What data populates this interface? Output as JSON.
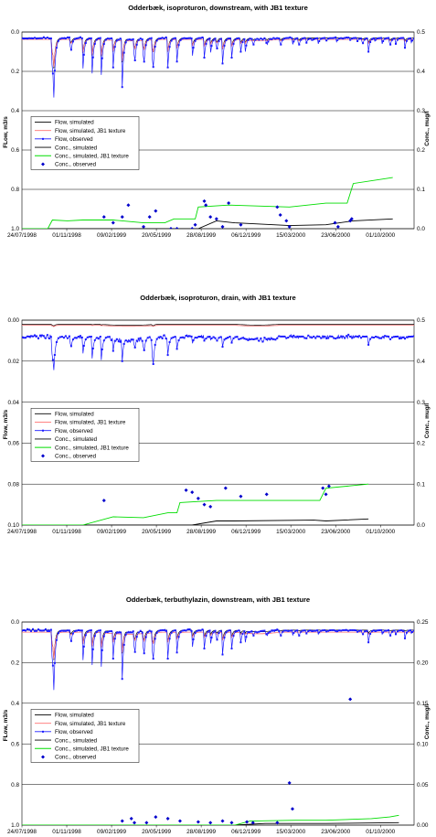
{
  "chart_data": [
    {
      "type": "line",
      "title": "Odderbæk, isoproturon, downstream, with JB1 texture",
      "ylabel_left": "FLow, m3/s",
      "ylabel_right": "Conc., mug/l",
      "x_tick_labels": [
        "24/07/1998",
        "01/11/1998",
        "09/02/1999",
        "20/05/1999",
        "28/08/1999",
        "06/12/1999",
        "15/03/2000",
        "23/06/2000",
        "01/10/2000"
      ],
      "y_left": {
        "lim": [
          0,
          1.0
        ],
        "inverted": true,
        "ticks": [
          "0.0",
          "0.2",
          "0.4",
          "0.6",
          "0.8",
          "1.0"
        ]
      },
      "y_right": {
        "lim": [
          0,
          0.5
        ],
        "ticks": [
          "0.5",
          "0.4",
          "0.3",
          "0.2",
          "0.1",
          "0.0"
        ]
      },
      "grid": "horizontal",
      "legend": [
        "Flow, simulated",
        "Flow, simulated, JB1 texture",
        "Flow, observed",
        "Conc., simulated",
        "Conc., simulated, JB1 texture",
        "Conc., observed"
      ],
      "legend_position": "middle-left",
      "flow_base": 0.03,
      "flow_dips": [
        [
          100,
          0.3
        ],
        [
          104,
          0.4
        ],
        [
          160,
          0.12
        ],
        [
          200,
          0.22
        ],
        [
          230,
          0.25
        ],
        [
          260,
          0.26
        ],
        [
          300,
          0.18
        ],
        [
          330,
          0.28
        ],
        [
          370,
          0.2
        ],
        [
          400,
          0.21
        ],
        [
          430,
          0.25
        ],
        [
          480,
          0.18
        ],
        [
          510,
          0.15
        ],
        [
          560,
          0.14
        ],
        [
          600,
          0.13
        ],
        [
          620,
          0.12
        ],
        [
          640,
          0.11
        ],
        [
          660,
          0.16
        ],
        [
          690,
          0.13
        ],
        [
          720,
          0.1
        ],
        [
          735,
          0.1
        ],
        [
          760,
          0.08
        ],
        [
          805,
          0.08
        ],
        [
          850,
          0.08
        ],
        [
          890,
          0.07
        ],
        [
          910,
          0.08
        ],
        [
          935,
          0.06
        ],
        [
          955,
          0.05
        ],
        [
          975,
          0.06
        ],
        [
          1000,
          0.05
        ],
        [
          1035,
          0.05
        ],
        [
          1080,
          0.04
        ],
        [
          1103,
          0.05
        ],
        [
          1120,
          0.07
        ],
        [
          1140,
          0.1
        ],
        [
          1160,
          0.05
        ],
        [
          1185,
          0.06
        ],
        [
          1210,
          0.08
        ],
        [
          1230,
          0.06
        ],
        [
          1260,
          0.08
        ],
        [
          1280,
          0.06
        ]
      ],
      "conc_jb1_steps": [
        [
          0,
          0.0
        ],
        [
          85,
          0.0
        ],
        [
          100,
          0.022
        ],
        [
          150,
          0.02
        ],
        [
          200,
          0.022
        ],
        [
          300,
          0.022
        ],
        [
          400,
          0.015
        ],
        [
          470,
          0.015
        ],
        [
          500,
          0.025
        ],
        [
          570,
          0.025
        ],
        [
          580,
          0.055
        ],
        [
          680,
          0.06
        ],
        [
          880,
          0.055
        ],
        [
          1000,
          0.065
        ],
        [
          1070,
          0.065
        ],
        [
          1090,
          0.115
        ],
        [
          1220,
          0.13
        ]
      ],
      "conc_sim_steps": [
        [
          0,
          0.0
        ],
        [
          580,
          0.0
        ],
        [
          640,
          0.02
        ],
        [
          700,
          0.015
        ],
        [
          880,
          0.008
        ],
        [
          1000,
          0.01
        ],
        [
          1090,
          0.02
        ],
        [
          1220,
          0.025
        ]
      ],
      "conc_obs": [
        [
          270,
          0.03
        ],
        [
          300,
          0.015
        ],
        [
          330,
          0.03
        ],
        [
          350,
          0.06
        ],
        [
          400,
          0.005
        ],
        [
          420,
          0.03
        ],
        [
          440,
          0.045
        ],
        [
          490,
          0.0
        ],
        [
          510,
          0.0
        ],
        [
          560,
          0.0
        ],
        [
          570,
          0.01
        ],
        [
          600,
          0.07
        ],
        [
          605,
          0.06
        ],
        [
          620,
          0.03
        ],
        [
          640,
          0.025
        ],
        [
          660,
          0.005
        ],
        [
          680,
          0.065
        ],
        [
          720,
          0.01
        ],
        [
          840,
          0.055
        ],
        [
          850,
          0.035
        ],
        [
          870,
          0.02
        ],
        [
          880,
          0.005
        ],
        [
          1030,
          0.015
        ],
        [
          1040,
          0.005
        ],
        [
          1080,
          0.02
        ],
        [
          1085,
          0.025
        ]
      ]
    },
    {
      "type": "line",
      "title": "Odderbæk, isoproturon, drain, with JB1 texture",
      "ylabel_left": "Flow, m3/s",
      "ylabel_right": "Conc., mug/l",
      "x_tick_labels": [
        "24/07/1998",
        "01/11/1998",
        "09/02/1999",
        "20/05/1999",
        "28/08/1999",
        "06/12/1999",
        "15/03/2000",
        "23/06/2000",
        "01/10/2000"
      ],
      "y_left": {
        "lim": [
          0,
          0.1
        ],
        "inverted": true,
        "ticks": [
          "0.00",
          "0.02",
          "0.04",
          "0.06",
          "0.08",
          "0.10"
        ]
      },
      "y_right": {
        "lim": [
          0,
          0.5
        ],
        "ticks": [
          "0.5",
          "0.4",
          "0.3",
          "0.2",
          "0.1",
          "0.0"
        ]
      },
      "grid": "horizontal",
      "legend": [
        "Flow, simulated",
        "Flow, simulated, JB1 texture",
        "Flow, observed",
        "Conc., simulated",
        "Conc., simulated, JB1 texture",
        "Conc., observed"
      ],
      "legend_position": "middle-left",
      "flow_base": 0.002,
      "flow_obs_base": 0.008,
      "flow_dips": [
        [
          100,
          0.025
        ],
        [
          104,
          0.028
        ],
        [
          160,
          0.015
        ],
        [
          200,
          0.018
        ],
        [
          230,
          0.021
        ],
        [
          260,
          0.022
        ],
        [
          300,
          0.015
        ],
        [
          330,
          0.02
        ],
        [
          370,
          0.016
        ],
        [
          400,
          0.018
        ],
        [
          430,
          0.028
        ],
        [
          480,
          0.017
        ],
        [
          510,
          0.014
        ],
        [
          560,
          0.012
        ],
        [
          600,
          0.01
        ],
        [
          620,
          0.01
        ],
        [
          640,
          0.011
        ],
        [
          660,
          0.013
        ],
        [
          690,
          0.011
        ],
        [
          720,
          0.009
        ],
        [
          735,
          0.009
        ],
        [
          760,
          0.008
        ],
        [
          805,
          0.008
        ],
        [
          850,
          0.008
        ],
        [
          890,
          0.007
        ],
        [
          910,
          0.008
        ],
        [
          935,
          0.006
        ],
        [
          955,
          0.005
        ],
        [
          975,
          0.006
        ],
        [
          1000,
          0.005
        ],
        [
          1035,
          0.005
        ],
        [
          1080,
          0.005
        ],
        [
          1103,
          0.006
        ],
        [
          1120,
          0.008
        ],
        [
          1140,
          0.012
        ],
        [
          1160,
          0.006
        ],
        [
          1185,
          0.006
        ],
        [
          1210,
          0.01
        ],
        [
          1230,
          0.006
        ],
        [
          1260,
          0.009
        ],
        [
          1280,
          0.006
        ]
      ],
      "conc_jb1_steps": [
        [
          0,
          0.0
        ],
        [
          200,
          0.0
        ],
        [
          300,
          0.02
        ],
        [
          400,
          0.018
        ],
        [
          480,
          0.03
        ],
        [
          510,
          0.03
        ],
        [
          520,
          0.055
        ],
        [
          640,
          0.06
        ],
        [
          880,
          0.06
        ],
        [
          960,
          0.06
        ],
        [
          980,
          0.06
        ],
        [
          1000,
          0.09
        ],
        [
          1140,
          0.1
        ]
      ],
      "conc_sim_steps": [
        [
          0,
          0.0
        ],
        [
          560,
          0.0
        ],
        [
          640,
          0.01
        ],
        [
          700,
          0.01
        ],
        [
          960,
          0.012
        ],
        [
          1000,
          0.01
        ],
        [
          1140,
          0.015
        ]
      ],
      "conc_obs": [
        [
          270,
          0.06
        ],
        [
          540,
          0.085
        ],
        [
          560,
          0.08
        ],
        [
          580,
          0.065
        ],
        [
          600,
          0.05
        ],
        [
          620,
          0.045
        ],
        [
          670,
          0.09
        ],
        [
          720,
          0.07
        ],
        [
          805,
          0.075
        ],
        [
          990,
          0.09
        ],
        [
          1000,
          0.075
        ],
        [
          1010,
          0.095
        ]
      ]
    },
    {
      "type": "line",
      "title": "Odderbæk, terbuthylazin, downstream, with JB1 texture",
      "ylabel_left": "FLow, m3/s",
      "ylabel_right": "Conc., mug/l",
      "x_tick_labels": [
        "24/07/1998",
        "01/11/1998",
        "09/02/1999",
        "20/05/1999",
        "28/08/1999",
        "06/12/1999",
        "15/03/2000",
        "23/06/2000",
        "01/10/2000"
      ],
      "y_left": {
        "lim": [
          0,
          1.0
        ],
        "inverted": true,
        "ticks": [
          "0.0",
          "0.2",
          "0.4",
          "0.6",
          "0.8",
          "1.0"
        ]
      },
      "y_right": {
        "lim": [
          0,
          0.25
        ],
        "ticks": [
          "0.25",
          "0.20",
          "0.15",
          "0.10",
          "0.05",
          "0.00"
        ]
      },
      "grid": "horizontal",
      "legend": [
        "Flow, simulated",
        "Flow, simulated, JB1 texture",
        "Flow, observed",
        "Conc., simulated",
        "Conc., simulated, JB1 texture",
        "Conc., observed"
      ],
      "legend_position": "middle-left",
      "flow_base": 0.04,
      "flow_dips": [
        [
          100,
          0.3
        ],
        [
          104,
          0.4
        ],
        [
          160,
          0.12
        ],
        [
          200,
          0.22
        ],
        [
          230,
          0.25
        ],
        [
          260,
          0.26
        ],
        [
          300,
          0.18
        ],
        [
          330,
          0.28
        ],
        [
          370,
          0.2
        ],
        [
          400,
          0.21
        ],
        [
          430,
          0.25
        ],
        [
          480,
          0.18
        ],
        [
          510,
          0.15
        ],
        [
          560,
          0.14
        ],
        [
          600,
          0.13
        ],
        [
          620,
          0.12
        ],
        [
          640,
          0.11
        ],
        [
          660,
          0.16
        ],
        [
          690,
          0.13
        ],
        [
          720,
          0.1
        ],
        [
          735,
          0.1
        ],
        [
          760,
          0.08
        ],
        [
          805,
          0.08
        ],
        [
          850,
          0.08
        ],
        [
          890,
          0.07
        ],
        [
          910,
          0.08
        ],
        [
          935,
          0.06
        ],
        [
          955,
          0.05
        ],
        [
          975,
          0.06
        ],
        [
          1000,
          0.05
        ],
        [
          1035,
          0.05
        ],
        [
          1080,
          0.04
        ],
        [
          1103,
          0.05
        ],
        [
          1120,
          0.07
        ],
        [
          1140,
          0.1
        ],
        [
          1160,
          0.05
        ],
        [
          1185,
          0.06
        ],
        [
          1210,
          0.08
        ],
        [
          1230,
          0.06
        ],
        [
          1260,
          0.08
        ],
        [
          1280,
          0.06
        ]
      ],
      "conc_jb1_steps": [
        [
          0,
          0.0
        ],
        [
          700,
          0.0
        ],
        [
          750,
          0.005
        ],
        [
          900,
          0.006
        ],
        [
          1000,
          0.006
        ],
        [
          1150,
          0.008
        ],
        [
          1210,
          0.01
        ],
        [
          1240,
          0.012
        ]
      ],
      "conc_sim_steps": [
        [
          0,
          0.0
        ],
        [
          700,
          0.0
        ],
        [
          800,
          0.002
        ],
        [
          1000,
          0.002
        ],
        [
          1240,
          0.003
        ]
      ],
      "conc_obs": [
        [
          330,
          0.005
        ],
        [
          360,
          0.008
        ],
        [
          370,
          0.003
        ],
        [
          410,
          0.003
        ],
        [
          440,
          0.01
        ],
        [
          480,
          0.008
        ],
        [
          520,
          0.005
        ],
        [
          580,
          0.004
        ],
        [
          620,
          0.003
        ],
        [
          660,
          0.005
        ],
        [
          690,
          0.003
        ],
        [
          740,
          0.004
        ],
        [
          760,
          0.003
        ],
        [
          840,
          0.003
        ],
        [
          880,
          0.052
        ],
        [
          890,
          0.02
        ],
        [
          1080,
          0.155
        ]
      ]
    }
  ]
}
